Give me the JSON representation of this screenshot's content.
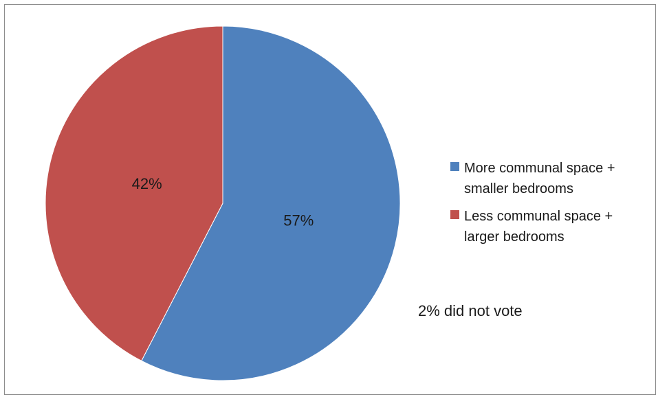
{
  "chart_data": {
    "type": "pie",
    "title": "",
    "series": [
      {
        "values": [
          {
            "label": "More communal space + smaller bedrooms",
            "value": 57,
            "display": "57%",
            "color": "#4f81bd"
          },
          {
            "label": "Less communal space + larger bedrooms",
            "value": 42,
            "display": "42%",
            "color": "#c0504d"
          }
        ]
      }
    ],
    "legend": {
      "placement": "right",
      "entries": [
        {
          "label": "More communal space + smaller bedrooms",
          "color": "#4f81bd"
        },
        {
          "label": "Less communal space + larger bedrooms",
          "color": "#c0504d"
        }
      ]
    },
    "annotations": [
      "2% did not vote"
    ]
  }
}
